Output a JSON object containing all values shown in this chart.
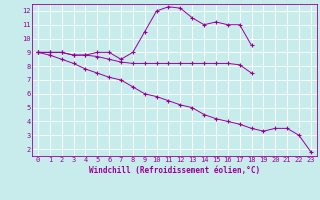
{
  "xlabel": "Windchill (Refroidissement éolien,°C)",
  "background_color": "#c8ecec",
  "line_color": "#990099",
  "xlim": [
    -0.5,
    23.5
  ],
  "ylim": [
    1.5,
    12.5
  ],
  "xticks": [
    0,
    1,
    2,
    3,
    4,
    5,
    6,
    7,
    8,
    9,
    10,
    11,
    12,
    13,
    14,
    15,
    16,
    17,
    18,
    19,
    20,
    21,
    22,
    23
  ],
  "yticks": [
    2,
    3,
    4,
    5,
    6,
    7,
    8,
    9,
    10,
    11,
    12
  ],
  "series1": [
    9.0,
    9.0,
    9.0,
    8.8,
    8.8,
    9.0,
    9.0,
    8.5,
    9.0,
    10.5,
    12.0,
    12.3,
    12.2,
    11.5,
    11.0,
    11.2,
    11.0,
    11.0,
    9.5,
    null,
    null,
    null,
    null,
    null
  ],
  "series2": [
    9.0,
    9.0,
    9.0,
    8.8,
    8.8,
    8.7,
    8.5,
    8.3,
    8.2,
    8.2,
    8.2,
    8.2,
    8.2,
    8.2,
    8.2,
    8.2,
    8.2,
    8.1,
    7.5,
    null,
    null,
    null,
    null,
    null
  ],
  "series3": [
    9.0,
    8.8,
    8.5,
    8.2,
    7.8,
    7.5,
    7.2,
    7.0,
    6.5,
    6.0,
    5.8,
    5.5,
    5.2,
    5.0,
    4.5,
    4.2,
    4.0,
    3.8,
    3.5,
    3.3,
    3.5,
    3.5,
    3.0,
    1.8
  ],
  "tick_fontsize": 5.0,
  "xlabel_fontsize": 5.5
}
